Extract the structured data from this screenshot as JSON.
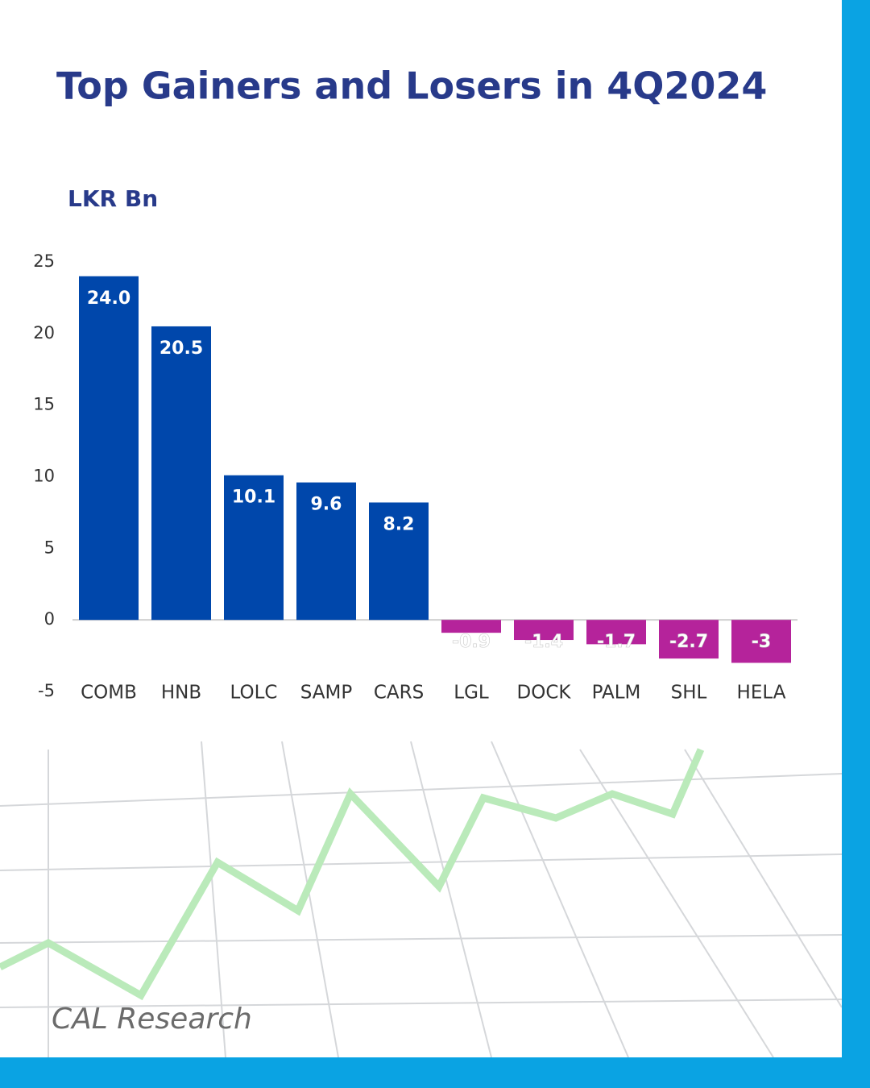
{
  "chart_data": {
    "type": "bar",
    "title": "Top Gainers and Losers in 4Q2024",
    "y_label": "LKR Bn",
    "categories": [
      "COMB",
      "HNB",
      "LOLC",
      "SAMP",
      "CARS",
      "LGL",
      "DOCK",
      "PALM",
      "SHL",
      "HELA"
    ],
    "values": [
      24.0,
      20.5,
      10.1,
      9.6,
      8.2,
      -0.9,
      -1.4,
      -1.7,
      -2.7,
      -3
    ],
    "value_labels": [
      "24.0",
      "20.5",
      "10.1",
      "9.6",
      "8.2",
      "-0.9",
      "-1.4",
      "-1.7",
      "-2.7",
      "-3"
    ],
    "color_positive": "#0047ab",
    "color_negative": "#b5239b",
    "ylim": [
      -5,
      25
    ],
    "yticks": [
      -5,
      0,
      5,
      10,
      15,
      20,
      25
    ],
    "grid": false
  },
  "footer": "CAL Research"
}
